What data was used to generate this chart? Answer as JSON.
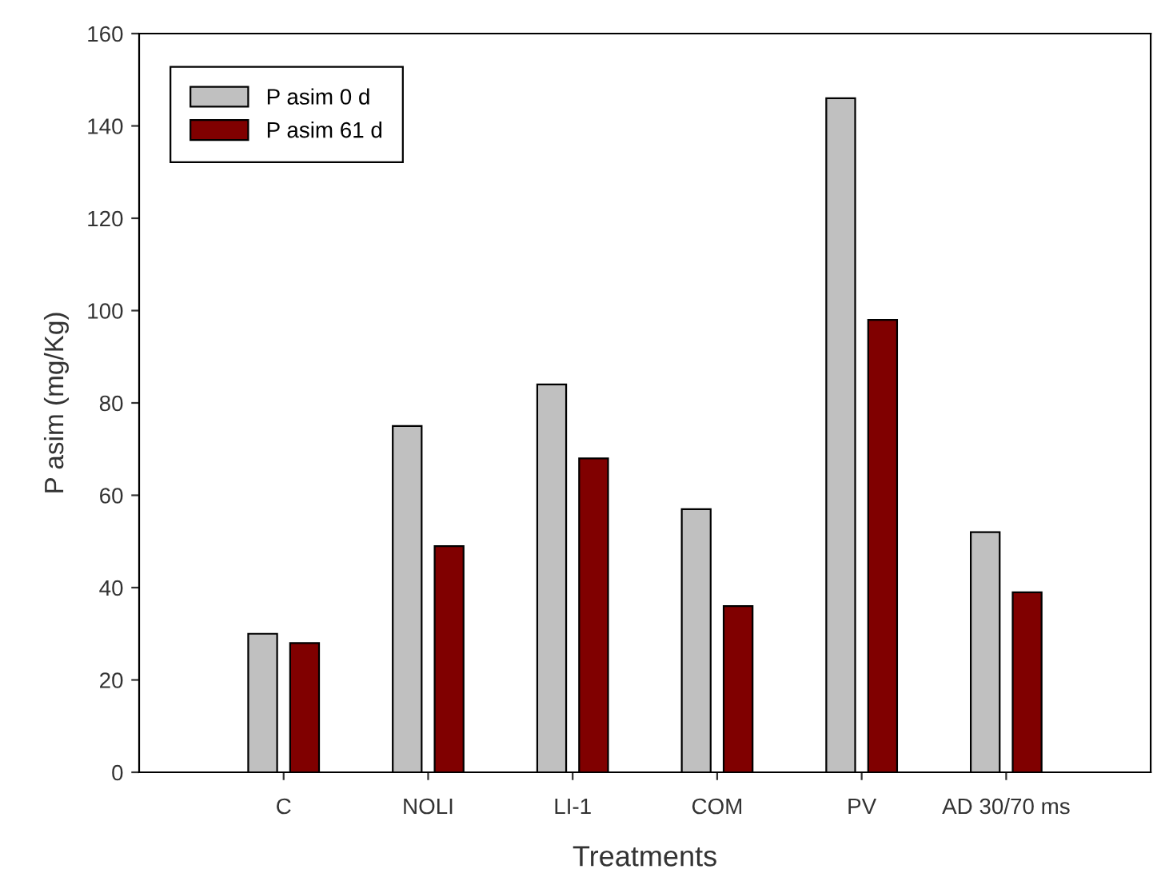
{
  "chart_data": {
    "type": "bar",
    "xlabel": "Treatments",
    "ylabel": "P asim (mg/Kg)",
    "categories": [
      "C",
      "NOLI",
      "LI-1",
      "COM",
      "PV",
      "AD 30/70 ms"
    ],
    "series": [
      {
        "name": "P asim 0 d",
        "color": "#c0c0c0",
        "values": [
          30,
          75,
          84,
          57,
          146,
          52
        ]
      },
      {
        "name": "P asim 61 d",
        "color": "#800000",
        "values": [
          28,
          49,
          68,
          36,
          98,
          39
        ]
      }
    ],
    "ylim": [
      0,
      160
    ],
    "yticks": [
      0,
      20,
      40,
      60,
      80,
      100,
      120,
      140,
      160
    ],
    "grid": false,
    "legend": "top left"
  }
}
